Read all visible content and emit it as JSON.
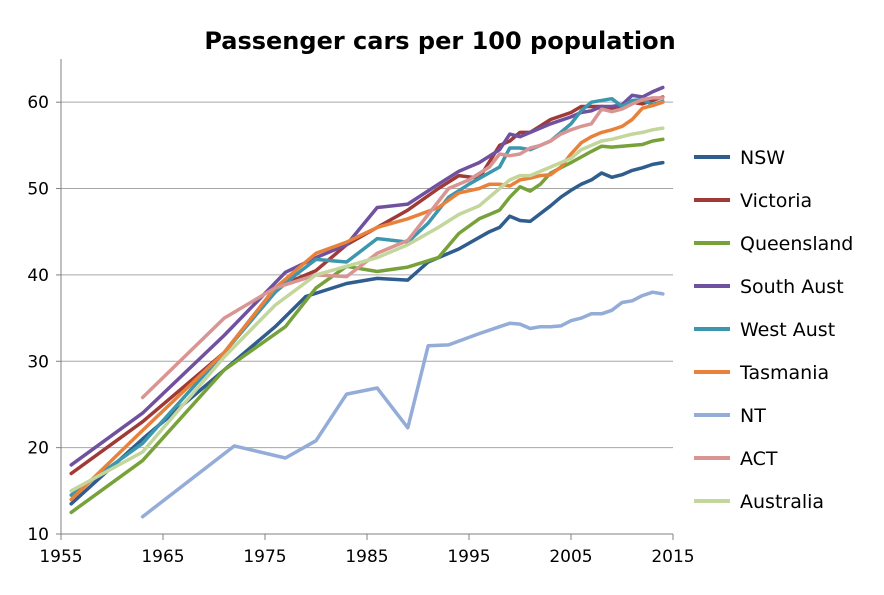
{
  "chart_data": {
    "type": "line",
    "title": "Passenger cars per 100 population",
    "xlabel": "",
    "ylabel": "",
    "xlim": [
      1955,
      2015
    ],
    "ylim": [
      10,
      65
    ],
    "x_ticks": [
      1955,
      1965,
      1975,
      1985,
      1995,
      2005,
      2015
    ],
    "y_ticks": [
      10,
      20,
      30,
      40,
      50,
      60
    ],
    "grid": "horizontal",
    "legend": "right",
    "series": [
      {
        "name": "NSW",
        "color": "#2e5d8e",
        "points": [
          [
            1956,
            13.5
          ],
          [
            1963,
            21
          ],
          [
            1971,
            29
          ],
          [
            1976,
            34
          ],
          [
            1979,
            37.5
          ],
          [
            1983,
            39
          ],
          [
            1986,
            39.6
          ],
          [
            1989,
            39.4
          ],
          [
            1991,
            41.5
          ],
          [
            1994,
            43
          ],
          [
            1997,
            45
          ],
          [
            1998,
            45.5
          ],
          [
            1999,
            46.8
          ],
          [
            2000,
            46.3
          ],
          [
            2001,
            46.2
          ],
          [
            2003,
            48
          ],
          [
            2004,
            49
          ],
          [
            2005,
            49.8
          ],
          [
            2006,
            50.5
          ],
          [
            2007,
            51
          ],
          [
            2008,
            51.8
          ],
          [
            2009,
            51.3
          ],
          [
            2010,
            51.6
          ],
          [
            2011,
            52.1
          ],
          [
            2012,
            52.4
          ],
          [
            2013,
            52.8
          ],
          [
            2014,
            53
          ]
        ]
      },
      {
        "name": "Victoria",
        "color": "#a03a37",
        "points": [
          [
            1956,
            17
          ],
          [
            1963,
            23
          ],
          [
            1971,
            31
          ],
          [
            1976,
            38.5
          ],
          [
            1978,
            39.5
          ],
          [
            1980,
            40.5
          ],
          [
            1983,
            43.5
          ],
          [
            1986,
            45.5
          ],
          [
            1989,
            47.5
          ],
          [
            1992,
            50
          ],
          [
            1994,
            51.5
          ],
          [
            1996,
            51.2
          ],
          [
            1998,
            55
          ],
          [
            1999,
            55.5
          ],
          [
            2000,
            56.5
          ],
          [
            2001,
            56.5
          ],
          [
            2003,
            58
          ],
          [
            2005,
            58.8
          ],
          [
            2006,
            59.5
          ],
          [
            2008,
            59.5
          ],
          [
            2009,
            59.3
          ],
          [
            2010,
            59.6
          ],
          [
            2011,
            60
          ],
          [
            2012,
            59.8
          ],
          [
            2013,
            60.2
          ],
          [
            2014,
            60.6
          ]
        ]
      },
      {
        "name": "Queensland",
        "color": "#77a23a",
        "points": [
          [
            1956,
            12.5
          ],
          [
            1963,
            18.5
          ],
          [
            1971,
            29
          ],
          [
            1977,
            34
          ],
          [
            1980,
            38.5
          ],
          [
            1983,
            41
          ],
          [
            1986,
            40.4
          ],
          [
            1989,
            40.9
          ],
          [
            1992,
            42
          ],
          [
            1994,
            44.8
          ],
          [
            1996,
            46.5
          ],
          [
            1997,
            47
          ],
          [
            1998,
            47.5
          ],
          [
            1999,
            49
          ],
          [
            2000,
            50.2
          ],
          [
            2001,
            49.7
          ],
          [
            2002,
            50.5
          ],
          [
            2003,
            51.8
          ],
          [
            2005,
            53
          ],
          [
            2007,
            54.3
          ],
          [
            2008,
            54.9
          ],
          [
            2009,
            54.8
          ],
          [
            2010,
            54.9
          ],
          [
            2011,
            55
          ],
          [
            2012,
            55.1
          ],
          [
            2013,
            55.5
          ],
          [
            2014,
            55.7
          ]
        ]
      },
      {
        "name": "South Aust",
        "color": "#7051a0",
        "points": [
          [
            1956,
            18
          ],
          [
            1963,
            24
          ],
          [
            1971,
            33
          ],
          [
            1977,
            40.3
          ],
          [
            1980,
            42
          ],
          [
            1983,
            43.5
          ],
          [
            1986,
            47.8
          ],
          [
            1989,
            48.2
          ],
          [
            1992,
            50.5
          ],
          [
            1994,
            52
          ],
          [
            1996,
            53
          ],
          [
            1998,
            54.5
          ],
          [
            1999,
            56.3
          ],
          [
            2000,
            56
          ],
          [
            2001,
            56.5
          ],
          [
            2003,
            57.5
          ],
          [
            2005,
            58.3
          ],
          [
            2006,
            58.8
          ],
          [
            2007,
            59
          ],
          [
            2008,
            59.5
          ],
          [
            2009,
            59.5
          ],
          [
            2010,
            59.7
          ],
          [
            2011,
            60.8
          ],
          [
            2012,
            60.6
          ],
          [
            2013,
            61.2
          ],
          [
            2014,
            61.7
          ]
        ]
      },
      {
        "name": "West Aust",
        "color": "#3c97ae",
        "points": [
          [
            1956,
            14.5
          ],
          [
            1963,
            20.5
          ],
          [
            1971,
            31
          ],
          [
            1976,
            38
          ],
          [
            1978,
            40
          ],
          [
            1980,
            41.8
          ],
          [
            1983,
            41.5
          ],
          [
            1986,
            44.2
          ],
          [
            1989,
            43.8
          ],
          [
            1991,
            46
          ],
          [
            1993,
            49
          ],
          [
            1995,
            50.5
          ],
          [
            1998,
            52.5
          ],
          [
            1999,
            54.7
          ],
          [
            2000,
            54.7
          ],
          [
            2001,
            54.5
          ],
          [
            2003,
            55.5
          ],
          [
            2005,
            57.5
          ],
          [
            2006,
            59
          ],
          [
            2007,
            60
          ],
          [
            2009,
            60.4
          ],
          [
            2010,
            59.5
          ],
          [
            2011,
            60.2
          ],
          [
            2012,
            60.3
          ],
          [
            2013,
            59.7
          ],
          [
            2014,
            60.1
          ]
        ]
      },
      {
        "name": "Tasmania",
        "color": "#e8823b",
        "points": [
          [
            1956,
            14
          ],
          [
            1963,
            22
          ],
          [
            1971,
            31
          ],
          [
            1976,
            38.5
          ],
          [
            1978,
            40.5
          ],
          [
            1980,
            42.5
          ],
          [
            1983,
            43.8
          ],
          [
            1986,
            45.5
          ],
          [
            1989,
            46.5
          ],
          [
            1992,
            47.8
          ],
          [
            1994,
            49.5
          ],
          [
            1996,
            50
          ],
          [
            1997,
            50.5
          ],
          [
            1998,
            50.5
          ],
          [
            1999,
            50.3
          ],
          [
            2000,
            51
          ],
          [
            2001,
            51.2
          ],
          [
            2002,
            51.5
          ],
          [
            2003,
            51.6
          ],
          [
            2004,
            52.5
          ],
          [
            2005,
            54
          ],
          [
            2006,
            55.3
          ],
          [
            2007,
            56
          ],
          [
            2008,
            56.5
          ],
          [
            2009,
            56.8
          ],
          [
            2010,
            57.2
          ],
          [
            2011,
            58
          ],
          [
            2012,
            59.3
          ],
          [
            2013,
            59.6
          ],
          [
            2014,
            60
          ]
        ]
      },
      {
        "name": "NT",
        "color": "#94acd8",
        "points": [
          [
            1963,
            12
          ],
          [
            1972,
            20.2
          ],
          [
            1977,
            18.8
          ],
          [
            1980,
            20.8
          ],
          [
            1983,
            26.2
          ],
          [
            1986,
            26.9
          ],
          [
            1989,
            22.3
          ],
          [
            1991,
            31.8
          ],
          [
            1993,
            31.9
          ],
          [
            1996,
            33.2
          ],
          [
            1998,
            34
          ],
          [
            1999,
            34.4
          ],
          [
            2000,
            34.3
          ],
          [
            2001,
            33.8
          ],
          [
            2002,
            34
          ],
          [
            2003,
            34
          ],
          [
            2004,
            34.1
          ],
          [
            2005,
            34.7
          ],
          [
            2006,
            35
          ],
          [
            2007,
            35.5
          ],
          [
            2008,
            35.5
          ],
          [
            2009,
            35.9
          ],
          [
            2010,
            36.8
          ],
          [
            2011,
            37
          ],
          [
            2012,
            37.6
          ],
          [
            2013,
            38
          ],
          [
            2014,
            37.8
          ]
        ]
      },
      {
        "name": "ACT",
        "color": "#d99593",
        "points": [
          [
            1963,
            25.8
          ],
          [
            1971,
            35
          ],
          [
            1976,
            38.5
          ],
          [
            1980,
            40
          ],
          [
            1983,
            39.8
          ],
          [
            1986,
            42.5
          ],
          [
            1989,
            44
          ],
          [
            1991,
            47
          ],
          [
            1993,
            50
          ],
          [
            1995,
            51
          ],
          [
            1997,
            52.5
          ],
          [
            1998,
            54
          ],
          [
            1999,
            53.8
          ],
          [
            2000,
            54
          ],
          [
            2001,
            54.7
          ],
          [
            2002,
            55
          ],
          [
            2003,
            55.5
          ],
          [
            2004,
            56.3
          ],
          [
            2005,
            56.8
          ],
          [
            2006,
            57.2
          ],
          [
            2007,
            57.5
          ],
          [
            2008,
            59.2
          ],
          [
            2009,
            58.9
          ],
          [
            2010,
            59.2
          ],
          [
            2011,
            59.8
          ],
          [
            2012,
            60.3
          ],
          [
            2013,
            60.5
          ],
          [
            2014,
            60.5
          ]
        ]
      },
      {
        "name": "Australia",
        "color": "#c3d69b",
        "points": [
          [
            1956,
            15
          ],
          [
            1963,
            19.5
          ],
          [
            1971,
            30.5
          ],
          [
            1976,
            36.5
          ],
          [
            1980,
            40
          ],
          [
            1983,
            41
          ],
          [
            1986,
            42
          ],
          [
            1989,
            43.5
          ],
          [
            1992,
            45.5
          ],
          [
            1994,
            47
          ],
          [
            1996,
            48
          ],
          [
            1998,
            50
          ],
          [
            1999,
            51
          ],
          [
            2000,
            51.5
          ],
          [
            2001,
            51.5
          ],
          [
            2003,
            52.5
          ],
          [
            2005,
            53.5
          ],
          [
            2006,
            54.5
          ],
          [
            2007,
            55
          ],
          [
            2008,
            55.5
          ],
          [
            2009,
            55.7
          ],
          [
            2010,
            56
          ],
          [
            2011,
            56.3
          ],
          [
            2012,
            56.5
          ],
          [
            2013,
            56.8
          ],
          [
            2014,
            57
          ]
        ]
      }
    ]
  }
}
